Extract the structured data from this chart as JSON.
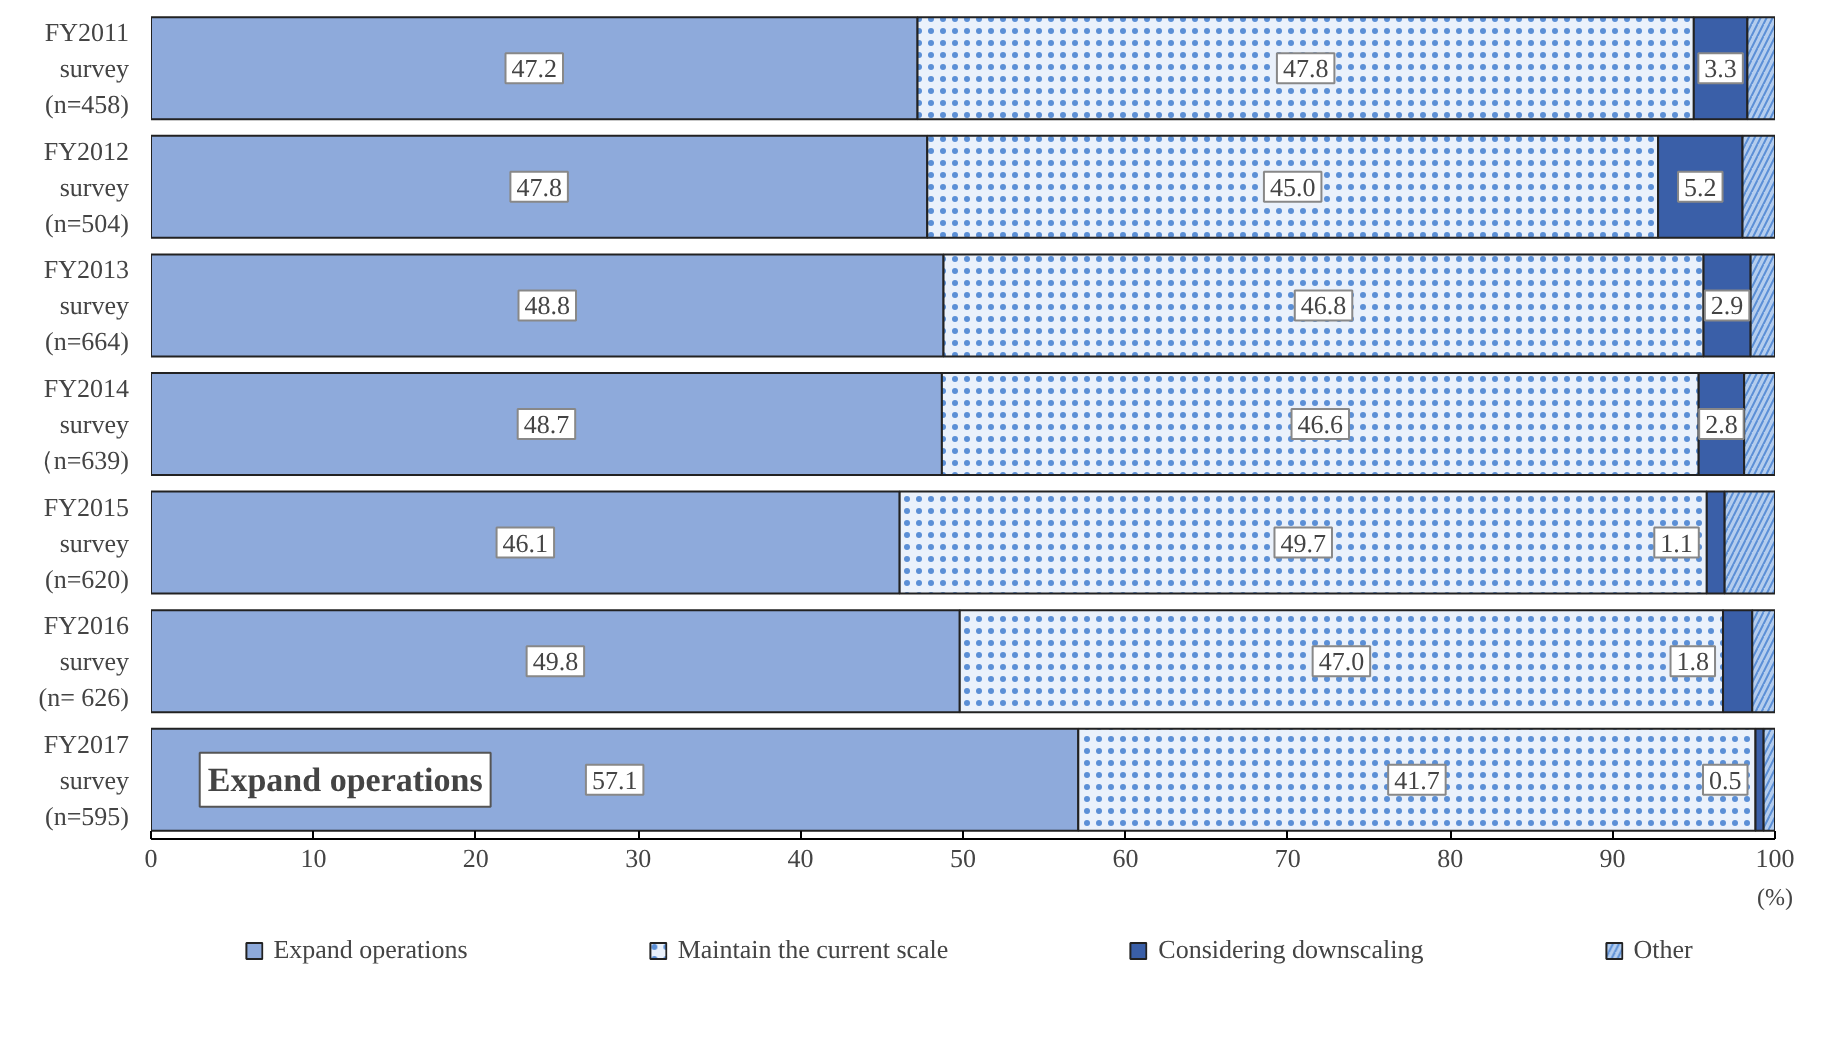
{
  "chart_data": {
    "type": "bar",
    "orientation": "horizontal",
    "stacked": true,
    "categories": [
      "FY2011\nsurvey\n(n=458)",
      "FY2012\nsurvey\n(n=504)",
      "FY2013\nsurvey\n(n=664)",
      "FY2014\nsurvey\n（n=639)",
      "FY2015\nsurvey\n(n=620)",
      "FY2016\nsurvey\n(n= 626)",
      "FY2017\nsurvey\n(n=595)"
    ],
    "series": [
      {
        "name": "Expand operations",
        "color": "#8eaadb",
        "values": [
          47.2,
          47.8,
          48.8,
          48.7,
          46.1,
          49.8,
          57.1
        ],
        "value_labels": [
          "47.2",
          "47.8",
          "48.8",
          "48.7",
          "46.1",
          "49.8",
          "57.1"
        ]
      },
      {
        "name": "Maintain the current scale",
        "color": "#eaf1fb",
        "values": [
          47.8,
          45.0,
          46.8,
          46.6,
          49.7,
          47.0,
          41.7
        ],
        "value_labels": [
          "47.8",
          "45.0",
          "46.8",
          "46.6",
          "49.7",
          "47.0",
          "41.7"
        ]
      },
      {
        "name": "Considering downscaling",
        "color": "#3a5fa8",
        "values": [
          3.3,
          5.2,
          2.9,
          2.8,
          1.1,
          1.8,
          0.5
        ],
        "value_labels": [
          "3.3",
          "5.2",
          "2.9",
          "2.8",
          "1.1",
          "1.8",
          "0.5"
        ]
      },
      {
        "name": "Other",
        "color": "#b4cdee",
        "values": [
          1.7,
          2.0,
          1.5,
          1.9,
          3.1,
          1.4,
          0.7
        ],
        "value_labels": [
          null,
          null,
          null,
          null,
          null,
          null,
          null
        ]
      }
    ],
    "xlim": [
      0,
      100
    ],
    "xticks": [
      0,
      10,
      20,
      30,
      40,
      50,
      60,
      70,
      80,
      90,
      100
    ],
    "xlabel": "(%)",
    "grid": false,
    "legend": "bottom",
    "annotations": [
      "Expand operations"
    ]
  }
}
